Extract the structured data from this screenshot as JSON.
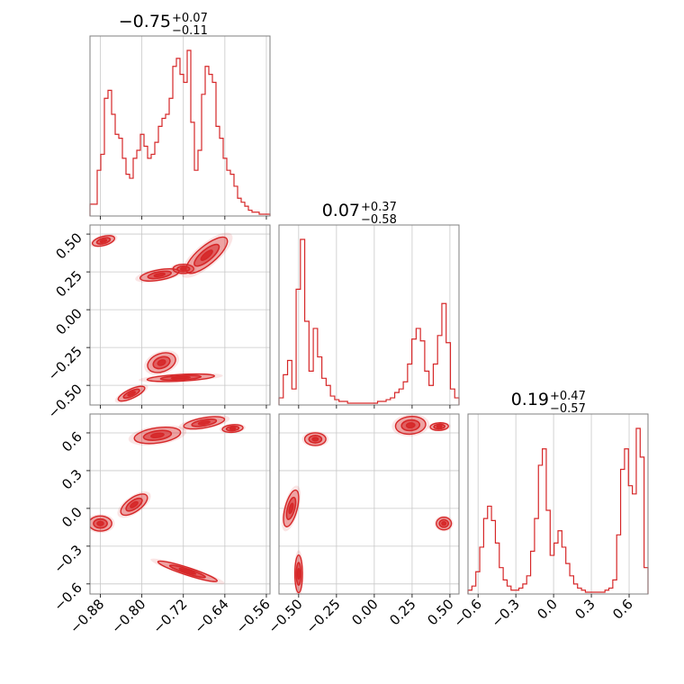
{
  "chart_data": {
    "type": "corner",
    "color": "#d62728",
    "parameters": [
      {
        "title": "−0.75",
        "title_plus": "+0.07",
        "title_minus": "−0.11",
        "range": [
          -0.9,
          -0.553
        ],
        "ticks": [
          -0.88,
          -0.8,
          -0.72,
          -0.64,
          -0.56
        ],
        "tick_labels": [
          "−0.88",
          "−0.80",
          "−0.72",
          "−0.64",
          "−0.56"
        ],
        "hist_density": [
          5,
          5,
          22,
          30,
          58,
          62,
          50,
          40,
          38,
          28,
          20,
          18,
          28,
          32,
          40,
          34,
          28,
          30,
          36,
          44,
          48,
          50,
          58,
          74,
          78,
          70,
          66,
          82,
          46,
          22,
          32,
          60,
          74,
          70,
          66,
          44,
          38,
          28,
          22,
          20,
          14,
          8,
          6,
          4,
          2,
          1,
          1,
          0,
          0,
          0
        ]
      },
      {
        "title": "0.07",
        "title_plus": "+0.37",
        "title_minus": "−0.58",
        "range": [
          -0.63,
          0.56
        ],
        "ticks": [
          -0.5,
          -0.25,
          0.0,
          0.25,
          0.5
        ],
        "tick_labels": [
          "−0.50",
          "−0.25",
          "0.00",
          "0.25",
          "0.50"
        ],
        "hist_density": [
          3,
          16,
          24,
          8,
          64,
          92,
          46,
          18,
          42,
          26,
          14,
          10,
          4,
          2,
          1,
          1,
          0,
          0,
          0,
          0,
          0,
          0,
          0,
          1,
          1,
          2,
          3,
          6,
          8,
          12,
          22,
          36,
          42,
          35,
          18,
          10,
          22,
          38,
          56,
          34,
          8,
          3
        ]
      },
      {
        "title": "0.19",
        "title_plus": "+0.47",
        "title_minus": "−0.57",
        "range": [
          -0.68,
          0.75
        ],
        "ticks": [
          -0.6,
          -0.3,
          0.0,
          0.3,
          0.6
        ],
        "tick_labels": [
          "−0.6",
          "−0.3",
          "0.0",
          "0.3",
          "0.6"
        ],
        "hist_density": [
          1,
          3,
          10,
          22,
          36,
          42,
          35,
          24,
          12,
          6,
          3,
          1,
          1,
          2,
          4,
          8,
          20,
          36,
          62,
          70,
          40,
          18,
          24,
          30,
          22,
          14,
          8,
          4,
          2,
          1,
          0,
          0,
          0,
          0,
          0,
          1,
          2,
          6,
          28,
          60,
          70,
          52,
          48,
          80,
          66,
          12
        ]
      }
    ],
    "pair_panels": [
      {
        "xparam": 0,
        "yparam": 1,
        "yticks": [
          0.5,
          0.25,
          0.0,
          -0.25,
          -0.5
        ],
        "ytick_labels": [
          "0.50",
          "0.25",
          "0.00",
          "−0.25",
          "−0.50"
        ],
        "blobs": [
          {
            "cx": -0.874,
            "cy": 0.455,
            "rx": 0.022,
            "ry": 0.03,
            "rot": -15
          },
          {
            "cx": -0.766,
            "cy": 0.23,
            "rx": 0.038,
            "ry": 0.034,
            "rot": -10
          },
          {
            "cx": -0.72,
            "cy": 0.27,
            "rx": 0.02,
            "ry": 0.03,
            "rot": 0
          },
          {
            "cx": -0.675,
            "cy": 0.36,
            "rx": 0.05,
            "ry": 0.06,
            "rot": -40
          },
          {
            "cx": -0.762,
            "cy": -0.35,
            "rx": 0.028,
            "ry": 0.06,
            "rot": -20
          },
          {
            "cx": -0.725,
            "cy": -0.45,
            "rx": 0.065,
            "ry": 0.022,
            "rot": -3
          },
          {
            "cx": -0.82,
            "cy": -0.555,
            "rx": 0.028,
            "ry": 0.03,
            "rot": -25
          }
        ]
      },
      {
        "xparam": 0,
        "yparam": 2,
        "yticks": [
          0.6,
          0.3,
          0.0,
          -0.3,
          -0.6
        ],
        "ytick_labels": [
          "0.6",
          "0.3",
          "0.0",
          "−0.3",
          "−0.6"
        ],
        "blobs": [
          {
            "cx": -0.77,
            "cy": 0.58,
            "rx": 0.045,
            "ry": 0.06,
            "rot": -8
          },
          {
            "cx": -0.68,
            "cy": 0.68,
            "rx": 0.04,
            "ry": 0.04,
            "rot": -10
          },
          {
            "cx": -0.625,
            "cy": 0.635,
            "rx": 0.02,
            "ry": 0.03,
            "rot": -5
          },
          {
            "cx": -0.88,
            "cy": -0.12,
            "rx": 0.022,
            "ry": 0.06,
            "rot": 0
          },
          {
            "cx": -0.815,
            "cy": 0.03,
            "rx": 0.03,
            "ry": 0.055,
            "rot": -35
          },
          {
            "cx": -0.712,
            "cy": -0.5,
            "rx": 0.06,
            "ry": 0.03,
            "rot": 18
          }
        ]
      },
      {
        "xparam": 1,
        "yparam": 2,
        "yticks": [],
        "ytick_labels": [],
        "blobs": [
          {
            "cx": -0.39,
            "cy": 0.55,
            "rx": 0.07,
            "ry": 0.05,
            "rot": 0
          },
          {
            "cx": 0.24,
            "cy": 0.66,
            "rx": 0.1,
            "ry": 0.07,
            "rot": -5
          },
          {
            "cx": 0.43,
            "cy": 0.65,
            "rx": 0.06,
            "ry": 0.03,
            "rot": -3
          },
          {
            "cx": -0.55,
            "cy": 0.0,
            "rx": 0.04,
            "ry": 0.15,
            "rot": 15
          },
          {
            "cx": -0.5,
            "cy": -0.52,
            "rx": 0.025,
            "ry": 0.15,
            "rot": 0
          },
          {
            "cx": 0.46,
            "cy": -0.12,
            "rx": 0.05,
            "ry": 0.05,
            "rot": 0
          }
        ]
      }
    ]
  }
}
